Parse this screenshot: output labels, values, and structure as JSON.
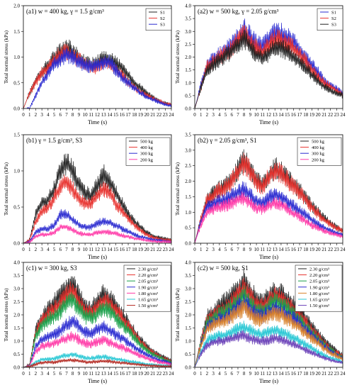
{
  "figure": {
    "colors": {
      "black": "#222222",
      "red": "#e8332f",
      "blue": "#2a2ad0",
      "magenta": "#ff3aa8",
      "green": "#1aa04a",
      "cyan": "#27c7d4",
      "dark_red": "#b2271f",
      "orange": "#d9822b",
      "purple": "#6a40b8",
      "ltblue": "#5c7fe6"
    }
  },
  "chart_data": [
    {
      "id": "a1",
      "type": "line",
      "title": "(a1) w = 400 kg, γ = 1.5 g/cm³",
      "xlabel": "Time (s)",
      "ylabel": "Total normal stress (kPa)",
      "xlim": [
        0,
        24
      ],
      "ylim": [
        0,
        2.0
      ],
      "yticks": [
        "0.0",
        "0.5",
        "1.0",
        "1.5",
        "2.0"
      ],
      "grid": false,
      "legend_position": "top-right",
      "series": [
        {
          "name": "S1",
          "color": "black",
          "values": [
            0,
            0.3,
            0.55,
            0.7,
            0.85,
            1.0,
            1.1,
            1.2,
            1.1,
            1.0,
            0.9,
            0.85,
            0.9,
            1.0,
            0.95,
            0.9,
            0.8,
            0.65,
            0.5,
            0.4,
            0.3,
            0.22,
            0.15,
            0.1,
            0.08
          ]
        },
        {
          "name": "S2",
          "color": "red",
          "values": [
            0,
            0.3,
            0.5,
            0.7,
            0.8,
            0.95,
            1.05,
            1.1,
            1.0,
            0.95,
            0.85,
            0.8,
            0.8,
            0.9,
            0.85,
            0.75,
            0.65,
            0.5,
            0.4,
            0.32,
            0.25,
            0.2,
            0.15,
            0.1,
            0.08
          ]
        },
        {
          "name": "S3",
          "color": "blue",
          "values": [
            0,
            0,
            0.25,
            0.5,
            0.7,
            0.85,
            0.95,
            1.05,
            1.0,
            0.9,
            0.85,
            0.8,
            0.85,
            0.9,
            0.9,
            0.75,
            0.6,
            0.5,
            0.4,
            0.3,
            0.22,
            0.17,
            0.12,
            0.08,
            0.05
          ]
        }
      ]
    },
    {
      "id": "a2",
      "type": "line",
      "title": "(a2) w = 500 kg, γ = 2.05 g/cm³",
      "xlabel": "Time (s)",
      "ylabel": "Total normal stress (kPa)",
      "xlim": [
        0,
        24
      ],
      "ylim": [
        0,
        4.0
      ],
      "yticks": [
        "0.0",
        "0.5",
        "1.0",
        "1.5",
        "2.0",
        "2.5",
        "3.0",
        "3.5",
        "4.0"
      ],
      "grid": false,
      "legend_position": "top-right",
      "series": [
        {
          "name": "S1",
          "color": "blue",
          "values": [
            0,
            0.9,
            1.7,
            1.9,
            2.1,
            2.3,
            2.5,
            2.8,
            3.1,
            2.8,
            2.5,
            2.4,
            2.7,
            2.95,
            2.9,
            2.75,
            2.6,
            2.3,
            2.0,
            1.7,
            1.4,
            1.1,
            0.9,
            0.75,
            0.6
          ]
        },
        {
          "name": "S2",
          "color": "red",
          "values": [
            0,
            0.8,
            1.6,
            1.8,
            2.0,
            2.15,
            2.35,
            2.65,
            2.9,
            2.6,
            2.35,
            2.2,
            2.45,
            2.7,
            2.65,
            2.5,
            2.35,
            2.1,
            1.8,
            1.5,
            1.2,
            1.0,
            0.85,
            0.7,
            0.55
          ]
        },
        {
          "name": "S3",
          "color": "black",
          "values": [
            0,
            0.8,
            1.5,
            1.7,
            1.9,
            2.05,
            2.25,
            2.45,
            2.75,
            2.4,
            2.1,
            1.95,
            2.15,
            2.4,
            2.35,
            2.2,
            2.0,
            1.8,
            1.55,
            1.3,
            1.05,
            0.85,
            0.7,
            0.6,
            0.5
          ]
        }
      ]
    },
    {
      "id": "b1",
      "type": "line",
      "title": "(b1)  γ = 1.5 g/cm³, S3",
      "xlabel": "Time (s)",
      "ylabel": "Total normal stress (kPa)",
      "xlim": [
        0,
        24
      ],
      "ylim": [
        0,
        1.5
      ],
      "yticks": [
        "0.0",
        "0.5",
        "1.0",
        "1.5"
      ],
      "grid": false,
      "legend_position": "top-right",
      "series": [
        {
          "name": "500 kg",
          "color": "black",
          "values": [
            0,
            0.05,
            0.4,
            0.55,
            0.6,
            0.75,
            1.0,
            1.1,
            1.0,
            0.8,
            0.7,
            0.65,
            0.8,
            0.95,
            0.85,
            0.7,
            0.55,
            0.4,
            0.3,
            0.22,
            0.15,
            0.1,
            0.08,
            0.06,
            0.05
          ]
        },
        {
          "name": "400 kg",
          "color": "red",
          "values": [
            0,
            0.04,
            0.3,
            0.45,
            0.5,
            0.62,
            0.8,
            0.85,
            0.75,
            0.6,
            0.55,
            0.55,
            0.65,
            0.75,
            0.7,
            0.55,
            0.45,
            0.35,
            0.25,
            0.18,
            0.12,
            0.08,
            0.06,
            0.05,
            0.04
          ]
        },
        {
          "name": "300 kg",
          "color": "blue",
          "values": [
            0,
            0.02,
            0.15,
            0.2,
            0.2,
            0.25,
            0.4,
            0.4,
            0.32,
            0.26,
            0.22,
            0.22,
            0.28,
            0.3,
            0.28,
            0.25,
            0.2,
            0.16,
            0.12,
            0.09,
            0.07,
            0.05,
            0.04,
            0.03,
            0.02
          ]
        },
        {
          "name": "200 kg",
          "color": "magenta",
          "values": [
            0,
            0.01,
            0.1,
            0.12,
            0.12,
            0.15,
            0.22,
            0.22,
            0.18,
            0.14,
            0.12,
            0.12,
            0.15,
            0.16,
            0.15,
            0.13,
            0.11,
            0.09,
            0.07,
            0.05,
            0.04,
            0.03,
            0.02,
            0.02,
            0.01
          ]
        }
      ]
    },
    {
      "id": "b2",
      "type": "line",
      "title": "(b2)  γ = 2.05 g/cm³, S1",
      "xlabel": "Time (s)",
      "ylabel": "Total normal stress (kPa)",
      "xlim": [
        0,
        24
      ],
      "ylim": [
        0,
        3.5
      ],
      "yticks": [
        "0.0",
        "0.5",
        "1.0",
        "1.5",
        "2.0",
        "2.5",
        "3.0",
        "3.5"
      ],
      "grid": false,
      "legend_position": "top-right",
      "series": [
        {
          "name": "500 kg",
          "color": "black",
          "values": [
            0,
            0.8,
            1.4,
            1.6,
            1.75,
            1.85,
            2.05,
            2.35,
            2.7,
            2.4,
            2.0,
            1.9,
            2.15,
            2.45,
            2.3,
            2.1,
            1.9,
            1.7,
            1.45,
            1.2,
            1.0,
            0.8,
            0.65,
            0.5,
            0.4
          ]
        },
        {
          "name": "400 kg",
          "color": "red",
          "values": [
            0,
            0.8,
            1.4,
            1.55,
            1.7,
            1.8,
            2.0,
            2.3,
            2.6,
            2.35,
            1.95,
            1.85,
            2.1,
            2.35,
            2.25,
            2.05,
            1.85,
            1.65,
            1.4,
            1.15,
            0.95,
            0.75,
            0.6,
            0.5,
            0.4
          ]
        },
        {
          "name": "300 kg",
          "color": "blue",
          "values": [
            0,
            0.7,
            1.2,
            1.3,
            1.35,
            1.4,
            1.55,
            1.65,
            1.75,
            1.55,
            1.35,
            1.3,
            1.45,
            1.6,
            1.5,
            1.35,
            1.2,
            1.05,
            0.9,
            0.75,
            0.6,
            0.5,
            0.4,
            0.33,
            0.28
          ]
        },
        {
          "name": "200 kg",
          "color": "magenta",
          "values": [
            0,
            0.6,
            1.0,
            1.1,
            1.15,
            1.2,
            1.3,
            1.4,
            1.45,
            1.3,
            1.15,
            1.1,
            1.2,
            1.3,
            1.25,
            1.1,
            0.95,
            0.85,
            0.7,
            0.58,
            0.48,
            0.4,
            0.33,
            0.27,
            0.22
          ]
        }
      ]
    },
    {
      "id": "c1",
      "type": "line",
      "title": "(c1)  w = 300 kg, S3",
      "xlabel": "Time (s)",
      "ylabel": "Total normal stress (kPa)",
      "xlim": [
        0,
        24
      ],
      "ylim": [
        0,
        4.0
      ],
      "yticks": [
        "0.0",
        "0.5",
        "1.0",
        "1.5",
        "2.0",
        "2.5",
        "3.0",
        "3.5",
        "4.0"
      ],
      "grid": false,
      "legend_position": "top-right",
      "series": [
        {
          "name": "2.30 g/cm³",
          "color": "black",
          "values": [
            0,
            0.1,
            1.4,
            1.9,
            2.2,
            2.45,
            2.7,
            2.95,
            3.2,
            2.7,
            2.3,
            2.2,
            2.5,
            2.8,
            2.6,
            2.3,
            2.0,
            1.7,
            1.35,
            1.05,
            0.8,
            0.6,
            0.45,
            0.35,
            0.25
          ]
        },
        {
          "name": "2.20 g/cm³",
          "color": "red",
          "values": [
            0,
            0.1,
            1.3,
            1.8,
            2.0,
            2.2,
            2.45,
            2.7,
            2.95,
            2.5,
            2.15,
            2.05,
            2.3,
            2.55,
            2.4,
            2.15,
            1.85,
            1.55,
            1.25,
            0.95,
            0.72,
            0.55,
            0.42,
            0.32,
            0.23
          ]
        },
        {
          "name": "2.05 g/cm³",
          "color": "green",
          "values": [
            0,
            0.08,
            1.2,
            1.6,
            1.8,
            1.95,
            2.15,
            2.4,
            2.6,
            2.25,
            1.95,
            1.85,
            2.05,
            2.3,
            2.15,
            1.9,
            1.65,
            1.4,
            1.12,
            0.86,
            0.66,
            0.5,
            0.38,
            0.28,
            0.2
          ]
        },
        {
          "name": "1.90 g/cm³",
          "color": "blue",
          "values": [
            0,
            0.06,
            0.8,
            1.05,
            1.15,
            1.25,
            1.4,
            1.6,
            1.8,
            1.55,
            1.35,
            1.3,
            1.45,
            1.55,
            1.4,
            1.25,
            1.1,
            0.95,
            0.78,
            0.62,
            0.48,
            0.37,
            0.28,
            0.22,
            0.16
          ]
        },
        {
          "name": "1.80 g/cm³",
          "color": "magenta",
          "values": [
            0,
            0.05,
            0.6,
            0.8,
            0.85,
            0.92,
            1.0,
            1.1,
            1.2,
            1.05,
            0.92,
            0.88,
            0.98,
            1.05,
            0.95,
            0.85,
            0.75,
            0.65,
            0.54,
            0.43,
            0.34,
            0.26,
            0.2,
            0.16,
            0.12
          ]
        },
        {
          "name": "1.65 g/cm³",
          "color": "cyan",
          "values": [
            0,
            0.03,
            0.2,
            0.3,
            0.3,
            0.33,
            0.4,
            0.45,
            0.5,
            0.42,
            0.36,
            0.34,
            0.38,
            0.4,
            0.36,
            0.32,
            0.28,
            0.24,
            0.2,
            0.16,
            0.12,
            0.1,
            0.08,
            0.06,
            0.05
          ]
        },
        {
          "name": "1.50 g/cm³",
          "color": "dark_red",
          "values": [
            0,
            0.02,
            0.12,
            0.18,
            0.18,
            0.2,
            0.24,
            0.26,
            0.28,
            0.24,
            0.2,
            0.2,
            0.22,
            0.24,
            0.22,
            0.19,
            0.17,
            0.15,
            0.12,
            0.1,
            0.08,
            0.06,
            0.05,
            0.04,
            0.03
          ]
        }
      ]
    },
    {
      "id": "c2",
      "type": "line",
      "title": "(c2)  w = 500 kg, S1",
      "xlabel": "Time (s)",
      "ylabel": "Total normal stress (kPa)",
      "xlim": [
        0,
        24
      ],
      "ylim": [
        0,
        4.0
      ],
      "yticks": [
        "0.0",
        "0.5",
        "1.0",
        "1.5",
        "2.0",
        "2.5",
        "3.0",
        "3.5",
        "4.0"
      ],
      "grid": false,
      "legend_position": "top-right",
      "series": [
        {
          "name": "2.30 g/cm³",
          "color": "black",
          "values": [
            0,
            1.0,
            1.9,
            2.1,
            2.3,
            2.5,
            2.7,
            2.95,
            3.3,
            2.9,
            2.6,
            2.5,
            2.7,
            2.9,
            2.8,
            2.6,
            2.4,
            2.15,
            1.85,
            1.55,
            1.25,
            1.0,
            0.8,
            0.6,
            0.45
          ]
        },
        {
          "name": "2.20 g/cm³",
          "color": "red",
          "values": [
            0,
            0.95,
            1.8,
            1.95,
            2.1,
            2.25,
            2.45,
            2.7,
            3.0,
            2.65,
            2.4,
            2.3,
            2.5,
            2.7,
            2.6,
            2.4,
            2.2,
            1.95,
            1.7,
            1.42,
            1.15,
            0.92,
            0.72,
            0.55,
            0.42
          ]
        },
        {
          "name": "2.05 g/cm³",
          "color": "green",
          "values": [
            0,
            0.9,
            1.7,
            1.85,
            2.0,
            2.1,
            2.3,
            2.5,
            2.75,
            2.45,
            2.2,
            2.15,
            2.3,
            2.5,
            2.4,
            2.25,
            2.05,
            1.8,
            1.55,
            1.3,
            1.05,
            0.85,
            0.66,
            0.5,
            0.38
          ]
        },
        {
          "name": "1.90 g/cm³",
          "color": "blue",
          "values": [
            0,
            0.85,
            1.55,
            1.7,
            1.8,
            1.9,
            2.05,
            2.25,
            2.45,
            2.2,
            2.0,
            1.95,
            2.1,
            2.25,
            2.15,
            2.0,
            1.85,
            1.65,
            1.42,
            1.2,
            0.98,
            0.78,
            0.6,
            0.46,
            0.35
          ]
        },
        {
          "name": "1.80 g/cm³",
          "color": "orange",
          "values": [
            0,
            0.8,
            1.45,
            1.6,
            1.7,
            1.8,
            1.95,
            2.1,
            2.3,
            2.05,
            1.85,
            1.8,
            1.95,
            2.1,
            2.0,
            1.85,
            1.7,
            1.5,
            1.3,
            1.1,
            0.9,
            0.72,
            0.56,
            0.43,
            0.32
          ]
        },
        {
          "name": "1.65 g/cm³",
          "color": "cyan",
          "values": [
            0,
            0.6,
            1.05,
            1.15,
            1.2,
            1.25,
            1.35,
            1.45,
            1.55,
            1.4,
            1.28,
            1.25,
            1.35,
            1.42,
            1.35,
            1.25,
            1.12,
            1.0,
            0.86,
            0.72,
            0.58,
            0.46,
            0.36,
            0.28,
            0.21
          ]
        },
        {
          "name": "1.50 g/cm³",
          "color": "purple",
          "values": [
            0,
            0.5,
            0.85,
            0.95,
            1.0,
            1.02,
            1.08,
            1.15,
            1.22,
            1.1,
            1.02,
            1.0,
            1.06,
            1.12,
            1.06,
            0.98,
            0.88,
            0.78,
            0.66,
            0.55,
            0.45,
            0.36,
            0.28,
            0.22,
            0.17
          ]
        }
      ]
    }
  ]
}
